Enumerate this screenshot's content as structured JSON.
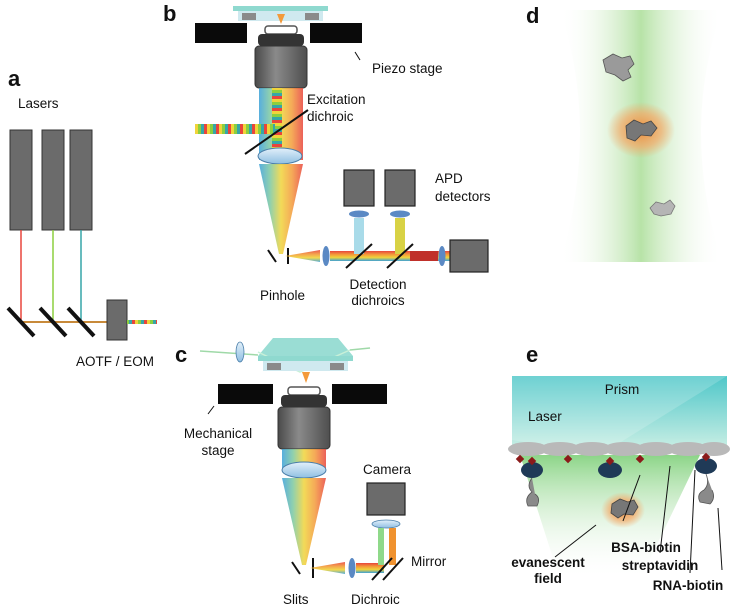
{
  "panels": {
    "a": {
      "letter": "a",
      "lasers_label": "Lasers",
      "aotf_label": "AOTF / EOM",
      "beam_colors": [
        "#e8453c",
        "#8ccf3f",
        "#36a6a8"
      ]
    },
    "b": {
      "letter": "b",
      "piezo_label": "Piezo stage",
      "excitation_line1": "Excitation",
      "excitation_line2": "dichroic",
      "apd_line1": "APD",
      "apd_line2": "detectors",
      "pinhole_label": "Pinhole",
      "detection_line1": "Detection",
      "detection_line2": "dichroics"
    },
    "c": {
      "letter": "c",
      "mech_line1": "Mechanical",
      "mech_line2": "stage",
      "camera_label": "Camera",
      "mirror_label": "Mirror",
      "slits_label": "Slits",
      "dichroic_label": "Dichroic"
    },
    "d": {
      "letter": "d"
    },
    "e": {
      "letter": "e",
      "prism_label": "Prism",
      "laser_label": "Laser",
      "evanescent_line1": "evanescent",
      "evanescent_line2": "field",
      "bsa_label": "BSA-biotin",
      "streptavidin_label": "streptavidin",
      "rna_label": "RNA-biotin"
    }
  },
  "colors": {
    "component_gray": "#6b6b6b",
    "stage_black": "#0a0a0a",
    "lens_blue": "#bcd8ee",
    "glass_cyan": "#8fd9cf",
    "field_green": "#9fd98a",
    "glow_orange": "#f08a3a",
    "protein_navy": "#1f3a57",
    "biotin_red": "#8b1a1a"
  }
}
